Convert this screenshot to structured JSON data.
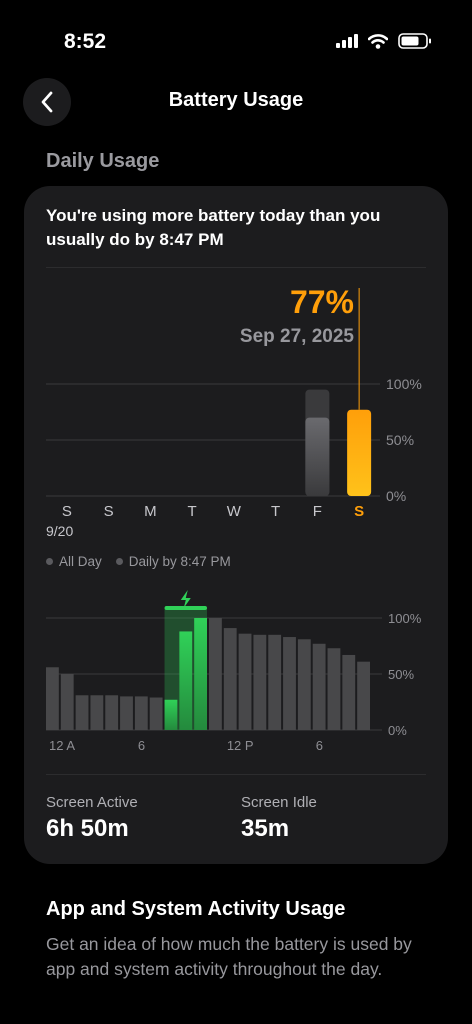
{
  "status_bar": {
    "time": "8:52"
  },
  "header": {
    "title": "Battery Usage"
  },
  "section": {
    "title": "Daily Usage"
  },
  "card": {
    "headline": "You're using more battery today than you usually do by 8:47 PM",
    "selected": {
      "percent": "77%",
      "date": "Sep 27, 2025"
    },
    "legend": {
      "all_day": "All Day",
      "daily_by": "Daily by 8:47 PM"
    },
    "screen_active": {
      "label": "Screen Active",
      "value": "6h 50m"
    },
    "screen_idle": {
      "label": "Screen Idle",
      "value": "35m"
    }
  },
  "colors": {
    "accent_orange": "#ff9f0a",
    "charging_green": "#30d158",
    "bar_gray": "#48484a"
  },
  "icons": [
    "chevron-left-icon",
    "cellular-signal-icon",
    "wifi-icon",
    "battery-icon",
    "lightning-bolt-icon"
  ],
  "chart_data": [
    {
      "type": "bar",
      "categories": [
        "S",
        "S",
        "M",
        "T",
        "W",
        "T",
        "F",
        "S"
      ],
      "start_date_label": "9/20",
      "selected_index": 7,
      "series": [
        {
          "name": "All Day",
          "values": [
            0,
            0,
            0,
            0,
            0,
            0,
            95,
            0
          ]
        },
        {
          "name": "Daily by 8:47 PM",
          "values": [
            0,
            0,
            0,
            0,
            0,
            0,
            70,
            77
          ]
        }
      ],
      "yticks": [
        "100%",
        "50%",
        "0%"
      ],
      "ylim": [
        0,
        100
      ]
    },
    {
      "type": "bar",
      "xticks": [
        "12 A",
        "6",
        "12 P",
        "6"
      ],
      "yticks": [
        "100%",
        "50%",
        "0%"
      ],
      "ylim": [
        0,
        100
      ],
      "values": [
        56,
        50,
        31,
        31,
        31,
        30,
        30,
        29,
        27,
        88,
        100,
        100,
        91,
        86,
        85,
        85,
        83,
        81,
        77,
        73,
        67,
        61
      ],
      "charging": [
        false,
        false,
        false,
        false,
        false,
        false,
        false,
        false,
        true,
        true,
        true,
        false,
        false,
        false,
        false,
        false,
        false,
        false,
        false,
        false,
        false,
        false
      ]
    }
  ]
}
